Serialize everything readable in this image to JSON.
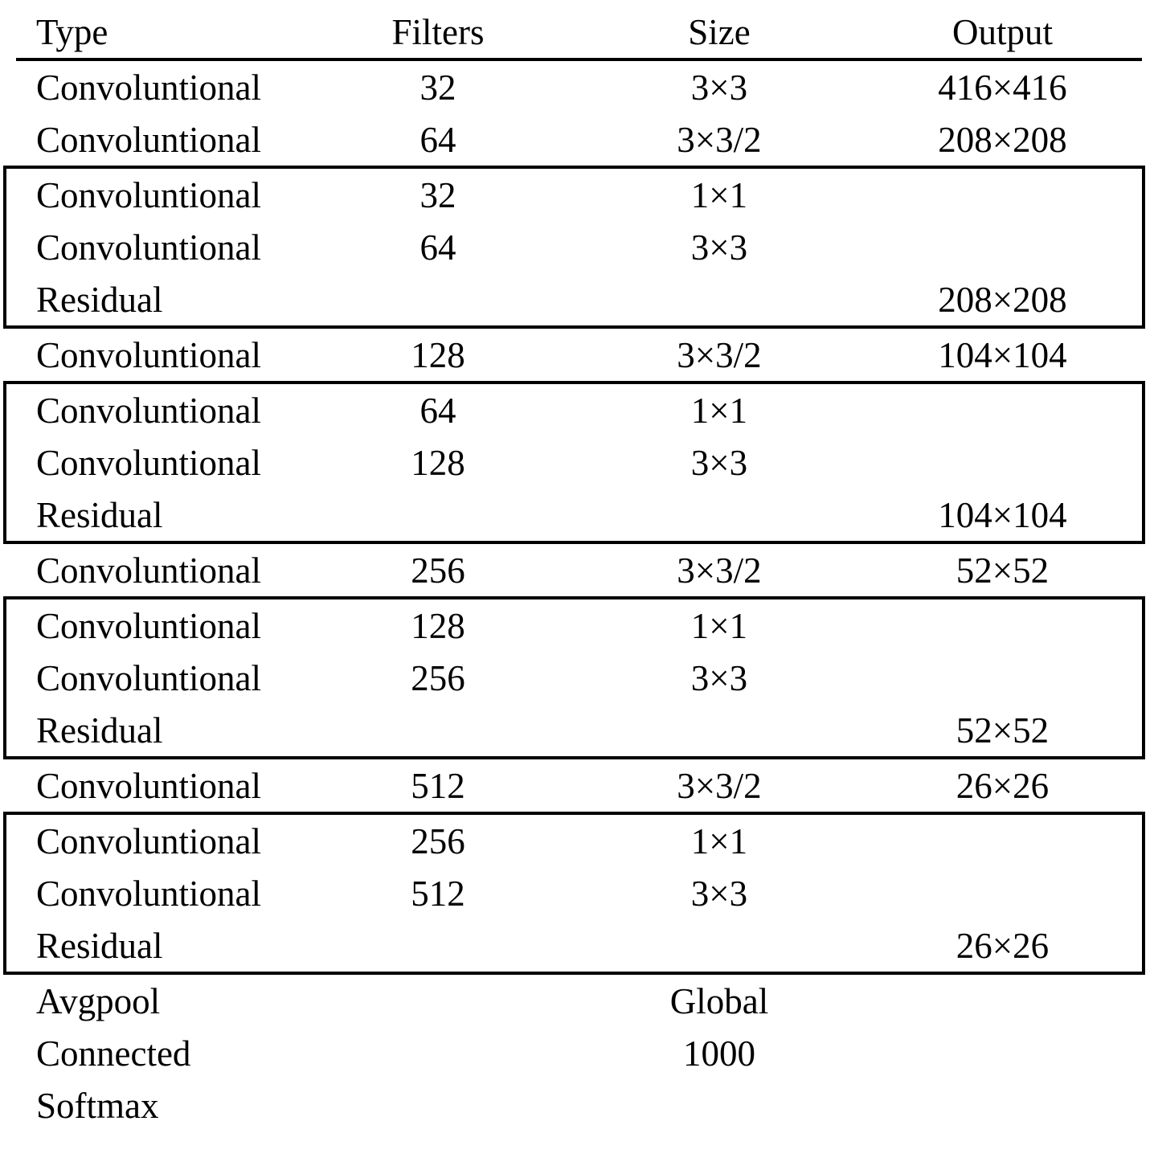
{
  "table": {
    "headers": {
      "type": "Type",
      "filters": "Filters",
      "size": "Size",
      "output": "Output"
    },
    "rows": [
      {
        "type": "Convoluntional",
        "filters": "32",
        "size": "3×3",
        "output": "416×416"
      },
      {
        "type": "Convoluntional",
        "filters": "64",
        "size": "3×3/2",
        "output": "208×208"
      },
      {
        "type": "Convoluntional",
        "filters": "32",
        "size": "1×1",
        "output": ""
      },
      {
        "type": "Convoluntional",
        "filters": "64",
        "size": "3×3",
        "output": ""
      },
      {
        "type": "Residual",
        "filters": "",
        "size": "",
        "output": "208×208"
      },
      {
        "type": "Convoluntional",
        "filters": "128",
        "size": "3×3/2",
        "output": "104×104"
      },
      {
        "type": "Convoluntional",
        "filters": "64",
        "size": "1×1",
        "output": ""
      },
      {
        "type": "Convoluntional",
        "filters": "128",
        "size": "3×3",
        "output": ""
      },
      {
        "type": "Residual",
        "filters": "",
        "size": "",
        "output": "104×104"
      },
      {
        "type": "Convoluntional",
        "filters": "256",
        "size": "3×3/2",
        "output": "52×52"
      },
      {
        "type": "Convoluntional",
        "filters": "128",
        "size": "1×1",
        "output": ""
      },
      {
        "type": "Convoluntional",
        "filters": "256",
        "size": "3×3",
        "output": ""
      },
      {
        "type": "Residual",
        "filters": "",
        "size": "",
        "output": "52×52"
      },
      {
        "type": "Convoluntional",
        "filters": "512",
        "size": "3×3/2",
        "output": "26×26"
      },
      {
        "type": "Convoluntional",
        "filters": "256",
        "size": "1×1",
        "output": ""
      },
      {
        "type": "Convoluntional",
        "filters": "512",
        "size": "3×3",
        "output": ""
      },
      {
        "type": "Residual",
        "filters": "",
        "size": "",
        "output": "26×26"
      },
      {
        "type": "Avgpool",
        "filters": "",
        "size": "Global",
        "output": ""
      },
      {
        "type": "Connected",
        "filters": "",
        "size": "1000",
        "output": ""
      },
      {
        "type": "Softmax",
        "filters": "",
        "size": "",
        "output": ""
      }
    ]
  }
}
